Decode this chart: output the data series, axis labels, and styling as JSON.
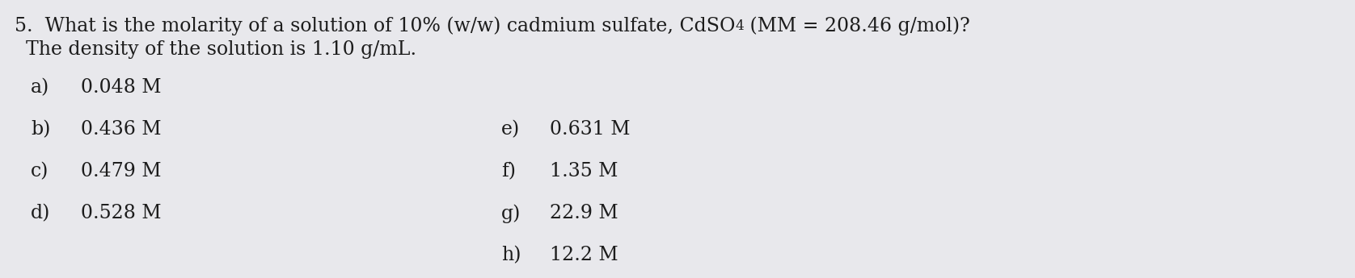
{
  "background_color": "#e8e8ec",
  "title_line1_p1": "5.  What is the molarity of a solution of 10% (w/w) cadmium sulfate, CdSO",
  "title_line1_sub": "4",
  "title_line1_p2": " (MM = 208.46 g/mol)?",
  "title_line2": "The density of the solution is 1.10 g/mL.",
  "options_left": [
    [
      "a)",
      "0.048 M"
    ],
    [
      "b)",
      "0.436 M"
    ],
    [
      "c)",
      "0.479 M"
    ],
    [
      "d)",
      "0.528 M"
    ]
  ],
  "options_right": [
    [
      "e)",
      "0.631 M"
    ],
    [
      "f)",
      "1.35 M"
    ],
    [
      "g)",
      "22.9 M"
    ],
    [
      "h)",
      "12.2 M"
    ]
  ],
  "text_color": "#1c1c1c",
  "fontsize_title": 17,
  "fontsize_options": 17,
  "font_family": "DejaVu Serif"
}
